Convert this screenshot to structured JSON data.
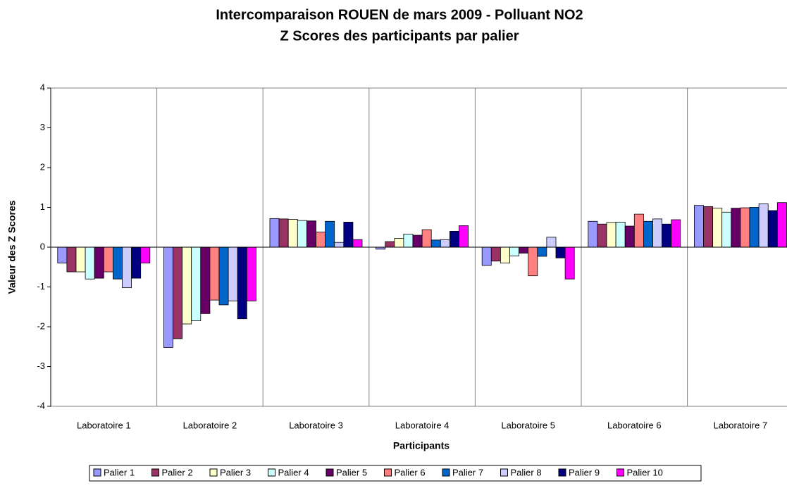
{
  "chart_data": {
    "type": "bar",
    "title": "Intercomparaison ROUEN de mars 2009 - Polluant NO2",
    "subtitle": "Z Scores des participants par palier",
    "x_label": "Participants",
    "y_label": "Valeur des Z Scores",
    "categories": [
      "Laboratoire 1",
      "Laboratoire 2",
      "Laboratoire 3",
      "Laboratoire 4",
      "Laboratoire 5",
      "Laboratoire 6",
      "Laboratoire 7"
    ],
    "series": [
      {
        "name": "Palier 1",
        "color": "#9999ff",
        "values": [
          -0.4,
          -2.52,
          0.72,
          -0.05,
          -0.46,
          0.65,
          1.05
        ]
      },
      {
        "name": "Palier 2",
        "color": "#993366",
        "values": [
          -0.62,
          -2.3,
          0.71,
          0.14,
          -0.35,
          0.58,
          1.02
        ]
      },
      {
        "name": "Palier 3",
        "color": "#ffffcc",
        "values": [
          -0.62,
          -1.93,
          0.7,
          0.22,
          -0.4,
          0.62,
          0.98
        ]
      },
      {
        "name": "Palier 4",
        "color": "#ccffff",
        "values": [
          -0.8,
          -1.85,
          0.67,
          0.33,
          -0.22,
          0.63,
          0.88
        ]
      },
      {
        "name": "Palier 5",
        "color": "#660066",
        "values": [
          -0.78,
          -1.67,
          0.66,
          0.3,
          -0.15,
          0.53,
          0.98
        ]
      },
      {
        "name": "Palier 6",
        "color": "#ff8080",
        "values": [
          -0.62,
          -1.33,
          0.38,
          0.44,
          -0.72,
          0.83,
          0.99
        ]
      },
      {
        "name": "Palier 7",
        "color": "#0066cc",
        "values": [
          -0.8,
          -1.45,
          0.65,
          0.18,
          -0.23,
          0.65,
          1.0
        ]
      },
      {
        "name": "Palier 8",
        "color": "#ccccff",
        "values": [
          -1.02,
          -1.35,
          0.12,
          0.19,
          0.25,
          0.71,
          1.09
        ]
      },
      {
        "name": "Palier 9",
        "color": "#000080",
        "values": [
          -0.78,
          -1.8,
          0.63,
          0.4,
          -0.27,
          0.58,
          0.92
        ]
      },
      {
        "name": "Palier 10",
        "color": "#ff00ff",
        "values": [
          -0.4,
          -1.35,
          0.19,
          0.54,
          -0.8,
          0.69,
          1.12
        ]
      }
    ],
    "ylim": [
      -4,
      4
    ],
    "yticks": [
      -4,
      -3,
      -2,
      -1,
      0,
      1,
      2,
      3,
      4
    ],
    "legend": "bottom"
  }
}
